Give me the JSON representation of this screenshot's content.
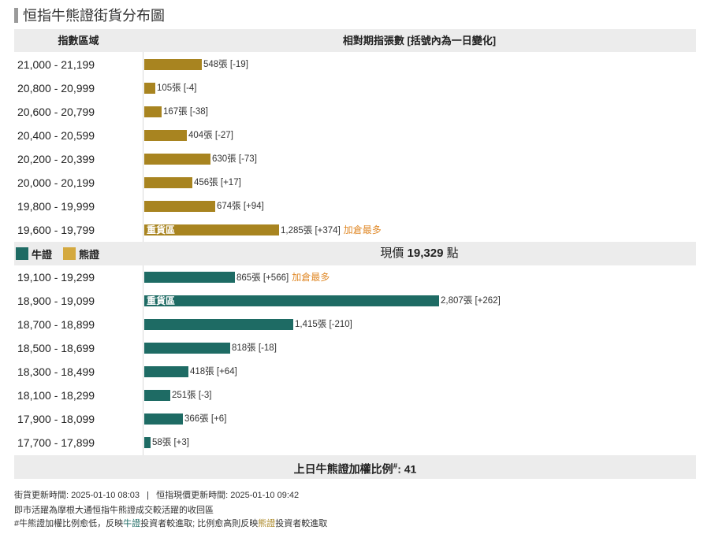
{
  "title": "恒指牛熊證街貨分布圖",
  "header": {
    "col1": "指數區域",
    "col2": "相對期指張數 [括號內為一日變化]"
  },
  "legend": {
    "bull": "牛證",
    "bear": "熊證"
  },
  "current_price": {
    "label": "現價",
    "value": "19,329",
    "unit": "點"
  },
  "heavy_label": "重貨區",
  "ratio": {
    "label": "上日牛熊證加權比例",
    "mark": "#",
    "value": ": 41"
  },
  "footer": {
    "line1": "街貨更新時間: 2025-01-10 08:03   |   恒指現價更新時間: 2025-01-10 09:42",
    "line2": "即市活躍為摩根大通恒指牛熊證成交較活躍的收回區",
    "line3_a": "#牛熊證加權比例愈低，反映",
    "line3_bull": "牛證",
    "line3_b": "投資者較進取; 比例愈高則反映",
    "line3_bear": "熊證",
    "line3_c": "投資者較進取"
  },
  "colors": {
    "bull": "#1e6b64",
    "bear": "#a88420",
    "bear_legend": "#d4a93f",
    "note": "#e08a2a"
  },
  "chart_data": {
    "type": "bar",
    "orientation": "horizontal",
    "max_value": 2807,
    "bear": [
      {
        "range": "21,000 - 21,199",
        "value": 548,
        "label": "548張 [-19]",
        "heavy": false,
        "note": ""
      },
      {
        "range": "20,800 - 20,999",
        "value": 105,
        "label": "105張 [-4]",
        "heavy": false,
        "note": ""
      },
      {
        "range": "20,600 - 20,799",
        "value": 167,
        "label": "167張 [-38]",
        "heavy": false,
        "note": ""
      },
      {
        "range": "20,400 - 20,599",
        "value": 404,
        "label": "404張 [-27]",
        "heavy": false,
        "note": ""
      },
      {
        "range": "20,200 - 20,399",
        "value": 630,
        "label": "630張 [-73]",
        "heavy": false,
        "note": ""
      },
      {
        "range": "20,000 - 20,199",
        "value": 456,
        "label": "456張 [+17]",
        "heavy": false,
        "note": ""
      },
      {
        "range": "19,800 - 19,999",
        "value": 674,
        "label": "674張 [+94]",
        "heavy": false,
        "note": ""
      },
      {
        "range": "19,600 - 19,799",
        "value": 1285,
        "label": "1,285張 [+374]",
        "heavy": true,
        "note": "加倉最多"
      }
    ],
    "bull": [
      {
        "range": "19,100 - 19,299",
        "value": 865,
        "label": "865張 [+566]",
        "heavy": false,
        "note": "加倉最多"
      },
      {
        "range": "18,900 - 19,099",
        "value": 2807,
        "label": "2,807張 [+262]",
        "heavy": true,
        "note": ""
      },
      {
        "range": "18,700 - 18,899",
        "value": 1415,
        "label": "1,415張 [-210]",
        "heavy": false,
        "note": ""
      },
      {
        "range": "18,500 - 18,699",
        "value": 818,
        "label": "818張 [-18]",
        "heavy": false,
        "note": ""
      },
      {
        "range": "18,300 - 18,499",
        "value": 418,
        "label": "418張 [+64]",
        "heavy": false,
        "note": ""
      },
      {
        "range": "18,100 - 18,299",
        "value": 251,
        "label": "251張 [-3]",
        "heavy": false,
        "note": ""
      },
      {
        "range": "17,900 - 18,099",
        "value": 366,
        "label": "366張 [+6]",
        "heavy": false,
        "note": ""
      },
      {
        "range": "17,700 - 17,899",
        "value": 58,
        "label": "58張 [+3]",
        "heavy": false,
        "note": ""
      }
    ]
  }
}
